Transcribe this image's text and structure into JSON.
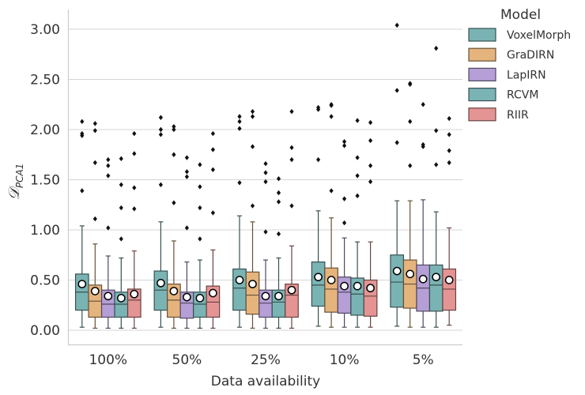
{
  "chart_data": {
    "type": "box",
    "xlabel": "Data availability",
    "ylabel": "D_PCA1",
    "ylabel_main": "𝒟",
    "ylabel_sub": "PCA1",
    "ylim": [
      -0.1,
      3.2
    ],
    "yticks": [
      0.0,
      0.5,
      1.0,
      1.5,
      2.0,
      2.5,
      3.0
    ],
    "ytick_labels": [
      "0.00",
      "0.50",
      "1.00",
      "1.50",
      "2.00",
      "2.50",
      "3.00"
    ],
    "grid": "horizontal",
    "legend_title": "Model",
    "legend_position": "outside-right",
    "categories": [
      "100%",
      "50%",
      "25%",
      "10%",
      "5%"
    ],
    "colors": [
      "#7ab3b3",
      "#e5b47d",
      "#b59fd6",
      "#7ab3b3",
      "#e59494"
    ],
    "series": [
      {
        "name": "VoxelMorph",
        "boxes": [
          {
            "whislo": 0.03,
            "q1": 0.2,
            "med": 0.38,
            "q3": 0.56,
            "whishi": 1.04,
            "mean": 0.46,
            "fliers": [
              1.39,
              1.94,
              1.96,
              2.08
            ]
          },
          {
            "whislo": 0.03,
            "q1": 0.2,
            "med": 0.4,
            "q3": 0.59,
            "whishi": 1.08,
            "mean": 0.47,
            "fliers": [
              1.45,
              1.95,
              2.0,
              2.12
            ]
          },
          {
            "whislo": 0.03,
            "q1": 0.2,
            "med": 0.42,
            "q3": 0.61,
            "whishi": 1.14,
            "mean": 0.5,
            "fliers": [
              1.47,
              2.01,
              2.08,
              2.13
            ]
          },
          {
            "whislo": 0.04,
            "q1": 0.24,
            "med": 0.45,
            "q3": 0.68,
            "whishi": 1.19,
            "mean": 0.53,
            "fliers": [
              1.7,
              2.2,
              2.22
            ]
          },
          {
            "whislo": 0.04,
            "q1": 0.23,
            "med": 0.48,
            "q3": 0.75,
            "whishi": 1.29,
            "mean": 0.59,
            "fliers": [
              1.87,
              2.39,
              3.04
            ]
          }
        ]
      },
      {
        "name": "GraDIRN",
        "boxes": [
          {
            "whislo": 0.02,
            "q1": 0.13,
            "med": 0.29,
            "q3": 0.45,
            "whishi": 0.86,
            "mean": 0.39,
            "fliers": [
              1.11,
              1.67,
              1.99,
              2.06
            ]
          },
          {
            "whislo": 0.02,
            "q1": 0.13,
            "med": 0.3,
            "q3": 0.46,
            "whishi": 0.89,
            "mean": 0.39,
            "fliers": [
              1.27,
              1.75,
              2.0,
              2.03
            ]
          },
          {
            "whislo": 0.02,
            "q1": 0.16,
            "med": 0.35,
            "q3": 0.58,
            "whishi": 1.08,
            "mean": 0.46,
            "fliers": [
              1.24,
              1.83,
              2.13,
              2.18
            ]
          },
          {
            "whislo": 0.03,
            "q1": 0.18,
            "med": 0.41,
            "q3": 0.62,
            "whishi": 1.12,
            "mean": 0.5,
            "fliers": [
              1.39,
              2.13,
              2.24,
              2.25
            ]
          },
          {
            "whislo": 0.03,
            "q1": 0.22,
            "med": 0.46,
            "q3": 0.7,
            "whishi": 1.29,
            "mean": 0.56,
            "fliers": [
              1.64,
              2.08,
              2.45,
              2.46
            ]
          }
        ]
      },
      {
        "name": "LapIRN",
        "boxes": [
          {
            "whislo": 0.02,
            "q1": 0.13,
            "med": 0.26,
            "q3": 0.4,
            "whishi": 0.74,
            "mean": 0.34,
            "fliers": [
              1.02,
              1.54,
              1.64,
              1.7
            ]
          },
          {
            "whislo": 0.02,
            "q1": 0.12,
            "med": 0.27,
            "q3": 0.38,
            "whishi": 0.68,
            "mean": 0.33,
            "fliers": [
              1.02,
              1.53,
              1.58,
              1.72
            ]
          },
          {
            "whislo": 0.02,
            "q1": 0.13,
            "med": 0.27,
            "q3": 0.4,
            "whishi": 0.7,
            "mean": 0.34,
            "fliers": [
              0.98,
              1.48,
              1.57,
              1.66
            ]
          },
          {
            "whislo": 0.03,
            "q1": 0.17,
            "med": 0.38,
            "q3": 0.53,
            "whishi": 0.92,
            "mean": 0.44,
            "fliers": [
              1.07,
              1.31,
              1.84,
              1.88
            ]
          },
          {
            "whislo": 0.03,
            "q1": 0.19,
            "med": 0.42,
            "q3": 0.65,
            "whishi": 1.3,
            "mean": 0.51,
            "fliers": [
              1.83,
              1.85,
              2.25
            ]
          }
        ]
      },
      {
        "name": "RCVM",
        "boxes": [
          {
            "whislo": 0.02,
            "q1": 0.13,
            "med": 0.26,
            "q3": 0.38,
            "whishi": 0.72,
            "mean": 0.32,
            "fliers": [
              0.91,
              1.22,
              1.45,
              1.71
            ]
          },
          {
            "whislo": 0.02,
            "q1": 0.13,
            "med": 0.26,
            "q3": 0.38,
            "whishi": 0.7,
            "mean": 0.32,
            "fliers": [
              0.91,
              1.22,
              1.43,
              1.65
            ]
          },
          {
            "whislo": 0.02,
            "q1": 0.13,
            "med": 0.28,
            "q3": 0.4,
            "whishi": 0.72,
            "mean": 0.34,
            "fliers": [
              0.96,
              1.28,
              1.37,
              1.51
            ]
          },
          {
            "whislo": 0.03,
            "q1": 0.15,
            "med": 0.36,
            "q3": 0.52,
            "whishi": 0.88,
            "mean": 0.44,
            "fliers": [
              1.34,
              1.54,
              1.72,
              2.09
            ]
          },
          {
            "whislo": 0.03,
            "q1": 0.19,
            "med": 0.45,
            "q3": 0.65,
            "whishi": 1.18,
            "mean": 0.53,
            "fliers": [
              1.65,
              1.99,
              2.81
            ]
          }
        ]
      },
      {
        "name": "RIIR",
        "boxes": [
          {
            "whislo": 0.02,
            "q1": 0.13,
            "med": 0.3,
            "q3": 0.41,
            "whishi": 0.79,
            "mean": 0.36,
            "fliers": [
              1.21,
              1.42,
              1.76,
              1.96
            ]
          },
          {
            "whislo": 0.02,
            "q1": 0.13,
            "med": 0.28,
            "q3": 0.44,
            "whishi": 0.8,
            "mean": 0.37,
            "fliers": [
              1.17,
              1.6,
              1.8,
              1.96
            ]
          },
          {
            "whislo": 0.02,
            "q1": 0.13,
            "med": 0.35,
            "q3": 0.46,
            "whishi": 0.84,
            "mean": 0.4,
            "fliers": [
              1.24,
              1.7,
              1.82,
              2.18
            ]
          },
          {
            "whislo": 0.03,
            "q1": 0.14,
            "med": 0.34,
            "q3": 0.5,
            "whishi": 0.88,
            "mean": 0.42,
            "fliers": [
              1.48,
              1.64,
              1.89,
              2.07
            ]
          },
          {
            "whislo": 0.05,
            "q1": 0.2,
            "med": 0.41,
            "q3": 0.61,
            "whishi": 1.02,
            "mean": 0.5,
            "fliers": [
              1.67,
              1.79,
              1.95,
              2.11
            ]
          }
        ]
      }
    ]
  }
}
